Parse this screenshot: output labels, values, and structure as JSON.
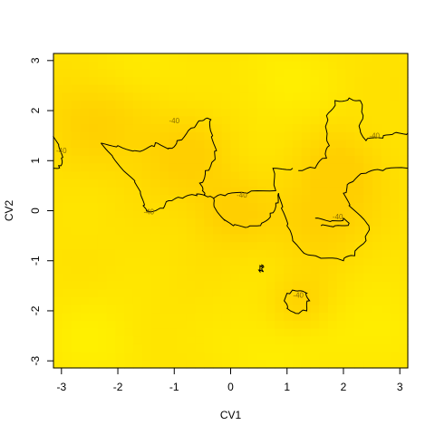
{
  "chart_data": {
    "type": "heatmap",
    "title": "",
    "xlabel": "CV1",
    "ylabel": "CV2",
    "xlim": [
      -3.14159,
      3.14159
    ],
    "ylim": [
      -3.14159,
      3.14159
    ],
    "x_ticks": [
      -3,
      -2,
      -1,
      0,
      1,
      2,
      3
    ],
    "y_ticks": [
      -3,
      -2,
      -1,
      0,
      1,
      2,
      3
    ],
    "x_tick_labels": [
      "-3",
      "-2",
      "-1",
      "0",
      "1",
      "2",
      "3"
    ],
    "y_tick_labels": [
      "-3",
      "-2",
      "-1",
      "0",
      "1",
      "2",
      "3"
    ],
    "grid": false,
    "legend": "none",
    "colormap": {
      "low": "#FFF200",
      "mid": "#FFE100",
      "high": "#FFCF00"
    },
    "surface_peaks": [
      {
        "x": -0.85,
        "y": 1.05,
        "w": 0.6
      },
      {
        "x": 2.0,
        "y": 0.85,
        "w": 0.55
      },
      {
        "x": 1.6,
        "y": -0.2,
        "w": 0.6
      },
      {
        "x": 0.0,
        "y": -0.05,
        "w": 0.5
      },
      {
        "x": -2.3,
        "y": 1.9,
        "w": 0.7
      },
      {
        "x": 1.2,
        "y": -1.9,
        "w": 0.4
      }
    ],
    "surface_troughs": [
      {
        "x": -2.4,
        "y": -2.6,
        "w": 0.7
      },
      {
        "x": 0.7,
        "y": -2.7,
        "w": 0.7
      },
      {
        "x": 2.6,
        "y": -2.4,
        "w": 0.6
      },
      {
        "x": -1.7,
        "y": 2.7,
        "w": 0.6
      },
      {
        "x": 0.9,
        "y": 2.6,
        "w": 0.6
      }
    ],
    "contour_level": "-40",
    "contours": [
      {
        "name": "left-region",
        "closed": false,
        "points": [
          [
            -1.3,
            1.35
          ],
          [
            -1.1,
            1.25
          ],
          [
            -0.95,
            1.4
          ],
          [
            -0.7,
            1.65
          ],
          [
            -0.5,
            1.8
          ],
          [
            -0.35,
            1.82
          ],
          [
            -0.32,
            1.5
          ],
          [
            -0.25,
            1.2
          ],
          [
            -0.3,
            1.0
          ],
          [
            -0.45,
            0.8
          ],
          [
            -0.55,
            0.55
          ],
          [
            -0.5,
            0.4
          ],
          [
            -0.45,
            0.3
          ],
          [
            -0.3,
            0.25
          ],
          [
            -0.1,
            0.3
          ],
          [
            0.3,
            0.35
          ],
          [
            0.8,
            0.4
          ],
          [
            0.75,
            0.85
          ],
          [
            1.1,
            0.85
          ]
        ]
      },
      {
        "name": "left-lower",
        "closed": false,
        "points": [
          [
            -2.3,
            1.35
          ],
          [
            -2.1,
            1.1
          ],
          [
            -1.9,
            0.8
          ],
          [
            -1.7,
            0.6
          ],
          [
            -1.6,
            0.35
          ],
          [
            -1.55,
            0.1
          ],
          [
            -1.5,
            0.0
          ],
          [
            -1.25,
            0.05
          ],
          [
            -1.1,
            0.2
          ],
          [
            -0.85,
            0.25
          ],
          [
            -0.6,
            0.3
          ],
          [
            -0.45,
            0.3
          ]
        ]
      },
      {
        "name": "left-upper",
        "closed": false,
        "points": [
          [
            -2.3,
            1.35
          ],
          [
            -2.0,
            1.3
          ],
          [
            -1.7,
            1.2
          ],
          [
            -1.4,
            1.3
          ],
          [
            -1.3,
            1.35
          ]
        ]
      },
      {
        "name": "center-bowl",
        "closed": false,
        "points": [
          [
            -0.3,
            0.25
          ],
          [
            -0.25,
            0.0
          ],
          [
            -0.1,
            -0.2
          ],
          [
            0.05,
            -0.3
          ],
          [
            0.3,
            -0.33
          ],
          [
            0.55,
            -0.25
          ],
          [
            0.7,
            -0.05
          ],
          [
            0.8,
            0.15
          ],
          [
            0.85,
            0.35
          ]
        ]
      },
      {
        "name": "right-region",
        "closed": false,
        "points": [
          [
            0.85,
            0.35
          ],
          [
            0.9,
            0.05
          ],
          [
            1.0,
            -0.3
          ],
          [
            1.1,
            -0.6
          ],
          [
            1.3,
            -0.85
          ],
          [
            1.6,
            -0.95
          ],
          [
            2.0,
            -1.0
          ],
          [
            2.2,
            -0.9
          ],
          [
            2.4,
            -0.6
          ],
          [
            2.45,
            -0.3
          ],
          [
            2.3,
            -0.1
          ],
          [
            2.1,
            0.1
          ],
          [
            2.0,
            0.35
          ],
          [
            2.1,
            0.55
          ],
          [
            2.4,
            0.75
          ],
          [
            2.7,
            0.8
          ],
          [
            3.14,
            0.85
          ]
        ]
      },
      {
        "name": "right-upper",
        "closed": false,
        "points": [
          [
            1.2,
            0.8
          ],
          [
            1.5,
            0.85
          ],
          [
            1.7,
            1.05
          ],
          [
            1.75,
            1.3
          ],
          [
            1.7,
            1.6
          ],
          [
            1.7,
            1.9
          ],
          [
            1.85,
            2.2
          ],
          [
            2.1,
            2.25
          ],
          [
            2.3,
            2.2
          ],
          [
            2.35,
            1.9
          ],
          [
            2.3,
            1.6
          ],
          [
            2.4,
            1.4
          ],
          [
            2.7,
            1.45
          ],
          [
            2.9,
            1.55
          ],
          [
            3.14,
            1.55
          ]
        ]
      },
      {
        "name": "right-inner",
        "closed": false,
        "points": [
          [
            1.5,
            -0.15
          ],
          [
            1.8,
            -0.2
          ],
          [
            2.0,
            -0.15
          ],
          [
            2.1,
            -0.25
          ],
          [
            1.85,
            -0.3
          ],
          [
            1.6,
            -0.3
          ]
        ]
      },
      {
        "name": "bottom-island",
        "closed": true,
        "points": [
          [
            1.0,
            -1.65
          ],
          [
            1.15,
            -1.6
          ],
          [
            1.35,
            -1.65
          ],
          [
            1.4,
            -1.8
          ],
          [
            1.35,
            -2.0
          ],
          [
            1.15,
            -2.05
          ],
          [
            1.0,
            -1.95
          ],
          [
            0.95,
            -1.8
          ]
        ]
      },
      {
        "name": "left-edge",
        "closed": false,
        "points": [
          [
            -3.14,
            1.5
          ],
          [
            -3.05,
            1.3
          ],
          [
            -3.0,
            1.05
          ],
          [
            -3.05,
            0.9
          ],
          [
            -3.14,
            0.85
          ]
        ]
      },
      {
        "name": "small-blip",
        "closed": true,
        "points": [
          [
            0.52,
            -1.1
          ],
          [
            0.58,
            -1.1
          ],
          [
            0.58,
            -1.22
          ],
          [
            0.52,
            -1.22
          ]
        ]
      }
    ],
    "contour_labels": [
      {
        "text": "-40",
        "x": -1.0,
        "y": 1.8
      },
      {
        "text": "-40",
        "x": -1.45,
        "y": -0.02
      },
      {
        "text": "-40",
        "x": 0.2,
        "y": 0.32
      },
      {
        "text": "-40",
        "x": 1.9,
        "y": -0.12
      },
      {
        "text": "-40",
        "x": 1.2,
        "y": -1.68
      },
      {
        "text": "-40",
        "x": 2.55,
        "y": 1.5
      },
      {
        "text": "-40",
        "x": -3.0,
        "y": 1.2
      }
    ]
  }
}
